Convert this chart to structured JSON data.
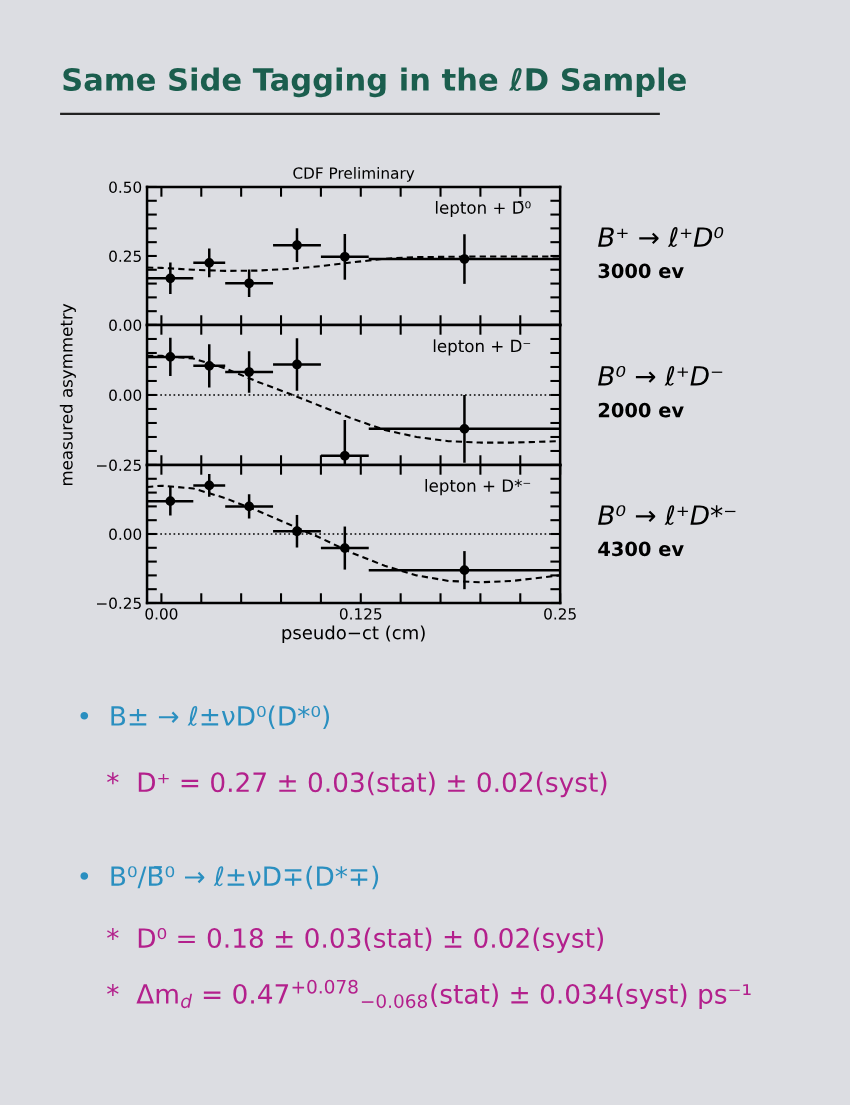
{
  "chart_data": [
    {
      "type": "scatter",
      "title": "CDF Preliminary",
      "xlim": [
        -0.009,
        0.25
      ],
      "ylim": [
        0,
        0.5
      ],
      "tick_labels": "y",
      "xticks": [
        {
          "value": 0,
          "label": null
        },
        {
          "value": 0.025,
          "label": null
        },
        {
          "value": 0.05,
          "label": null
        },
        {
          "value": 0.075,
          "label": null
        },
        {
          "value": 0.1,
          "label": null
        },
        {
          "value": 0.125,
          "label": null
        },
        {
          "value": 0.15,
          "label": null
        },
        {
          "value": 0.175,
          "label": null
        },
        {
          "value": 0.2,
          "label": null
        },
        {
          "value": 0.225,
          "label": null
        }
      ],
      "yticks": [
        {
          "value": 0,
          "label": "0.00"
        },
        {
          "value": 0.05,
          "label": null
        },
        {
          "value": 0.1,
          "label": null
        },
        {
          "value": 0.15,
          "label": null
        },
        {
          "value": 0.2,
          "label": null
        },
        {
          "value": 0.25,
          "label": "0.25"
        },
        {
          "value": 0.3,
          "label": null
        },
        {
          "value": 0.35,
          "label": null
        },
        {
          "value": 0.4,
          "label": null
        },
        {
          "value": 0.45,
          "label": null
        },
        {
          "value": 0.5,
          "label": "0.50"
        }
      ],
      "annotations": [
        "lepton + D̄⁰",
        "B⁺ → ℓ⁺D⁰",
        "3000 ev"
      ],
      "series": [
        {
          "type": "scatter",
          "color": "#000000",
          "marker": "circle",
          "x": [
            0.0056,
            0.03,
            0.055,
            0.085,
            0.115,
            0.19
          ],
          "values": [
            0.169,
            0.225,
            0.151,
            0.289,
            0.247,
            0.239
          ],
          "errors": [
            0.057,
            0.052,
            0.05,
            0.061,
            0.083,
            0.09
          ],
          "xerrors": [
            [
              -0.009,
              0.02
            ],
            [
              0.02,
              0.04
            ],
            [
              0.04,
              0.07
            ],
            [
              0.07,
              0.1
            ],
            [
              0.1,
              0.13
            ],
            [
              0.13,
              0.25
            ]
          ]
        },
        {
          "type": "line",
          "color": "#000000",
          "line_style": "dashed",
          "x": [
            -0.009,
            0.0,
            0.02,
            0.04,
            0.06,
            0.08,
            0.1,
            0.12,
            0.14,
            0.16,
            0.2,
            0.25
          ],
          "values": [
            0.208,
            0.207,
            0.2,
            0.196,
            0.197,
            0.203,
            0.213,
            0.227,
            0.24,
            0.246,
            0.248,
            0.248
          ]
        }
      ]
    },
    {
      "type": "scatter",
      "xlim": [
        -0.009,
        0.25
      ],
      "ylim": [
        -0.25,
        0.25
      ],
      "tick_labels": "y",
      "ylabel": "measured asymmetry",
      "xticks": [
        {
          "value": 0,
          "label": null
        },
        {
          "value": 0.025,
          "label": null
        },
        {
          "value": 0.05,
          "label": null
        },
        {
          "value": 0.075,
          "label": null
        },
        {
          "value": 0.1,
          "label": null
        },
        {
          "value": 0.125,
          "label": null
        },
        {
          "value": 0.15,
          "label": null
        },
        {
          "value": 0.175,
          "label": null
        },
        {
          "value": 0.2,
          "label": null
        },
        {
          "value": 0.225,
          "label": null
        }
      ],
      "yticks": [
        {
          "value": -0.25,
          "label": "−0.25"
        },
        {
          "value": -0.2,
          "label": null
        },
        {
          "value": -0.15,
          "label": null
        },
        {
          "value": -0.1,
          "label": null
        },
        {
          "value": -0.05,
          "label": null
        },
        {
          "value": 0,
          "label": "0.00"
        },
        {
          "value": 0.05,
          "label": null
        },
        {
          "value": 0.1,
          "label": null
        },
        {
          "value": 0.15,
          "label": null
        },
        {
          "value": 0.2,
          "label": null
        },
        {
          "value": 0.25,
          "label": null
        }
      ],
      "ref_lines": [
        {
          "axis": "y",
          "value": 0,
          "color": "#000000",
          "line_style": "dotted"
        }
      ],
      "annotations": [
        "lepton + D⁻",
        "B⁰ → ℓ⁺D⁻",
        "2000 ev"
      ],
      "series": [
        {
          "type": "scatter",
          "color": "#000000",
          "marker": "circle",
          "x": [
            0.0056,
            0.03,
            0.055,
            0.085,
            0.115,
            0.19
          ],
          "values": [
            0.136,
            0.104,
            0.082,
            0.109,
            -0.217,
            -0.121
          ],
          "errors": [
            0.068,
            0.077,
            0.074,
            0.094,
            [
              -0.25,
              -0.089
            ],
            0.121
          ],
          "xerrors": [
            [
              -0.009,
              0.02
            ],
            [
              0.02,
              0.04
            ],
            [
              0.04,
              0.07
            ],
            [
              0.07,
              0.1
            ],
            [
              0.1,
              0.13
            ],
            [
              0.13,
              0.25
            ]
          ]
        },
        {
          "type": "line",
          "color": "#000000",
          "line_style": "dashed",
          "x": [
            -0.009,
            0.0,
            0.02,
            0.04,
            0.06,
            0.08,
            0.1,
            0.12,
            0.14,
            0.16,
            0.18,
            0.2,
            0.22,
            0.25
          ],
          "values": [
            0.14,
            0.14,
            0.13,
            0.095,
            0.048,
            0.005,
            -0.04,
            -0.085,
            -0.125,
            -0.15,
            -0.165,
            -0.17,
            -0.17,
            -0.165
          ]
        }
      ]
    },
    {
      "type": "scatter",
      "xlim": [
        -0.009,
        0.25
      ],
      "ylim": [
        -0.25,
        0.25
      ],
      "xlabel": "pseudo−ct (cm)",
      "xticks": [
        {
          "value": 0,
          "label": "0.00"
        },
        {
          "value": 0.025,
          "label": null
        },
        {
          "value": 0.05,
          "label": null
        },
        {
          "value": 0.075,
          "label": null
        },
        {
          "value": 0.1,
          "label": null
        },
        {
          "value": 0.125,
          "label": "0.125"
        },
        {
          "value": 0.15,
          "label": null
        },
        {
          "value": 0.175,
          "label": null
        },
        {
          "value": 0.2,
          "label": null
        },
        {
          "value": 0.225,
          "label": null
        },
        {
          "value": 0.25,
          "label": "0.25"
        }
      ],
      "yticks": [
        {
          "value": -0.25,
          "label": "−0.25"
        },
        {
          "value": -0.2,
          "label": null
        },
        {
          "value": -0.15,
          "label": null
        },
        {
          "value": -0.1,
          "label": null
        },
        {
          "value": -0.05,
          "label": null
        },
        {
          "value": 0,
          "label": "0.00"
        },
        {
          "value": 0.05,
          "label": null
        },
        {
          "value": 0.1,
          "label": null
        },
        {
          "value": 0.15,
          "label": null
        },
        {
          "value": 0.2,
          "label": null
        },
        {
          "value": 0.25,
          "label": null
        }
      ],
      "ref_lines": [
        {
          "axis": "y",
          "value": 0,
          "color": "#000000",
          "line_style": "dotted"
        }
      ],
      "annotations": [
        "lepton + D*⁻",
        "B⁰ → ℓ⁺D*⁻",
        "4300 ev"
      ],
      "series": [
        {
          "type": "scatter",
          "color": "#000000",
          "marker": "circle",
          "x": [
            0.0056,
            0.03,
            0.055,
            0.085,
            0.115,
            0.19
          ],
          "values": [
            0.119,
            0.176,
            0.1,
            0.01,
            -0.051,
            -0.131
          ],
          "errors": [
            0.052,
            0.041,
            0.044,
            0.059,
            0.078,
            0.069
          ],
          "xerrors": [
            [
              -0.009,
              0.02
            ],
            [
              0.02,
              0.04
            ],
            [
              0.04,
              0.07
            ],
            [
              0.07,
              0.1
            ],
            [
              0.1,
              0.13
            ],
            [
              0.13,
              0.25
            ]
          ]
        },
        {
          "type": "line",
          "color": "#000000",
          "line_style": "dashed",
          "x": [
            -0.009,
            0.0,
            0.02,
            0.04,
            0.06,
            0.08,
            0.1,
            0.12,
            0.14,
            0.16,
            0.18,
            0.2,
            0.22,
            0.25
          ],
          "values": [
            0.17,
            0.175,
            0.165,
            0.13,
            0.085,
            0.035,
            -0.015,
            -0.07,
            -0.115,
            -0.15,
            -0.17,
            -0.175,
            -0.17,
            -0.15
          ]
        }
      ]
    },
    {
      "type": "other",
      "title": "Same Side Tagging in the ℓD Sample",
      "annotations": [
        "•  B± → ℓ±νD⁰(D*⁰)",
        "*  D⁺ = 0.27 ± 0.03(stat) ± 0.02(syst)",
        "•  B⁰/B̄⁰ → ℓ±νD∓(D*∓)",
        "*  D⁰ = 0.18 ± 0.03(stat) ± 0.02(syst)",
        "*  Δm$_{d}$ = 0.47$^{+0.078}$$_{−0.068}$(stat) ± 0.034(syst) ps⁻¹"
      ]
    }
  ]
}
